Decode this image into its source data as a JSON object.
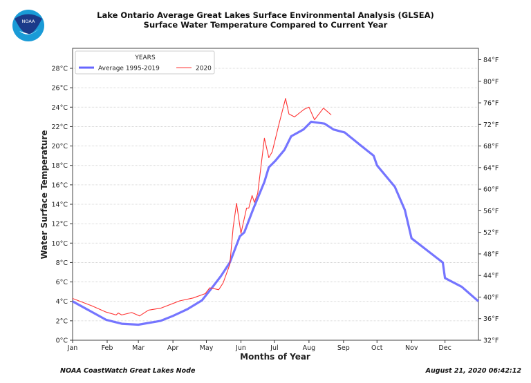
{
  "title_line1": "Lake Ontario Average Great Lakes Surface Environmental Analysis (GLSEA)",
  "title_line2": "Surface Water Temperature Compared to Current Year",
  "logo_text": "NOAA",
  "footer_left": "NOAA CoastWatch Great Lakes Node",
  "footer_right": "August 21, 2020 06:42:12",
  "chart_data": {
    "type": "line",
    "xlabel": "Months of Year",
    "ylabel": "Water Surface Temperature",
    "x_ticks": [
      "Jan",
      "Feb",
      "Mar",
      "Apr",
      "May",
      "Jun",
      "Jul",
      "Aug",
      "Sep",
      "Oct",
      "Nov",
      "Dec"
    ],
    "ylim": [
      0,
      30
    ],
    "y_ticks_left": [
      "0°C",
      "2°C",
      "4°C",
      "6°C",
      "8°C",
      "10°C",
      "12°C",
      "14°C",
      "16°C",
      "18°C",
      "20°C",
      "22°C",
      "24°C",
      "26°C",
      "28°C"
    ],
    "y_ticks_right": [
      "32°F",
      "36°F",
      "40°F",
      "44°F",
      "48°F",
      "52°F",
      "56°F",
      "60°F",
      "64°F",
      "68°F",
      "72°F",
      "76°F",
      "80°F",
      "84°F"
    ],
    "grid": "horizontal dotted",
    "legend": {
      "title": "YEARS",
      "placement": "top-left"
    },
    "series": [
      {
        "name": "Average 1995-2019",
        "color": "#6666ff",
        "x": [
          "01-01",
          "01-31",
          "02-14",
          "03-01",
          "03-21",
          "04-01",
          "04-14",
          "04-27",
          "05-06",
          "05-14",
          "05-22",
          "05-31",
          "06-04",
          "06-12",
          "06-22",
          "06-26",
          "07-02",
          "07-10",
          "07-16",
          "07-27",
          "08-03",
          "08-15",
          "08-23",
          "09-02",
          "09-16",
          "09-28",
          "10-01",
          "10-17",
          "10-26",
          "11-01",
          "11-11",
          "11-29",
          "12-01",
          "12-16",
          "12-31"
        ],
        "y": [
          4.0,
          2.1,
          1.7,
          1.6,
          2.0,
          2.5,
          3.2,
          4.1,
          5.4,
          6.6,
          8.0,
          10.7,
          11.1,
          13.5,
          16.3,
          17.8,
          18.5,
          19.6,
          21.0,
          21.7,
          22.5,
          22.3,
          21.7,
          21.4,
          20.1,
          19.0,
          18.0,
          15.8,
          13.4,
          10.5,
          9.6,
          8.0,
          6.4,
          5.5,
          4.0
        ]
      },
      {
        "name": "2020",
        "color": "#ff3333",
        "x": [
          "01-01",
          "01-18",
          "01-31",
          "02-09",
          "02-11",
          "02-14",
          "02-23",
          "03-02",
          "03-10",
          "03-21",
          "04-07",
          "04-19",
          "04-30",
          "05-04",
          "05-12",
          "05-16",
          "05-22",
          "05-25",
          "05-28",
          "06-01",
          "06-06",
          "06-08",
          "06-11",
          "06-13",
          "06-16",
          "06-22",
          "06-26",
          "06-29",
          "07-05",
          "07-11",
          "07-14",
          "07-19",
          "07-24",
          "07-28",
          "08-01",
          "08-06",
          "08-14",
          "08-21"
        ],
        "y": [
          4.3,
          3.55,
          2.9,
          2.6,
          2.8,
          2.6,
          2.85,
          2.5,
          3.1,
          3.3,
          4.05,
          4.35,
          4.8,
          5.4,
          5.2,
          5.9,
          7.8,
          11.6,
          14.1,
          11.0,
          13.6,
          13.6,
          14.9,
          14.2,
          15.1,
          20.8,
          18.8,
          19.4,
          22.2,
          24.9,
          23.3,
          23.0,
          23.45,
          23.8,
          24.0,
          22.7,
          23.9,
          23.2
        ]
      }
    ]
  }
}
